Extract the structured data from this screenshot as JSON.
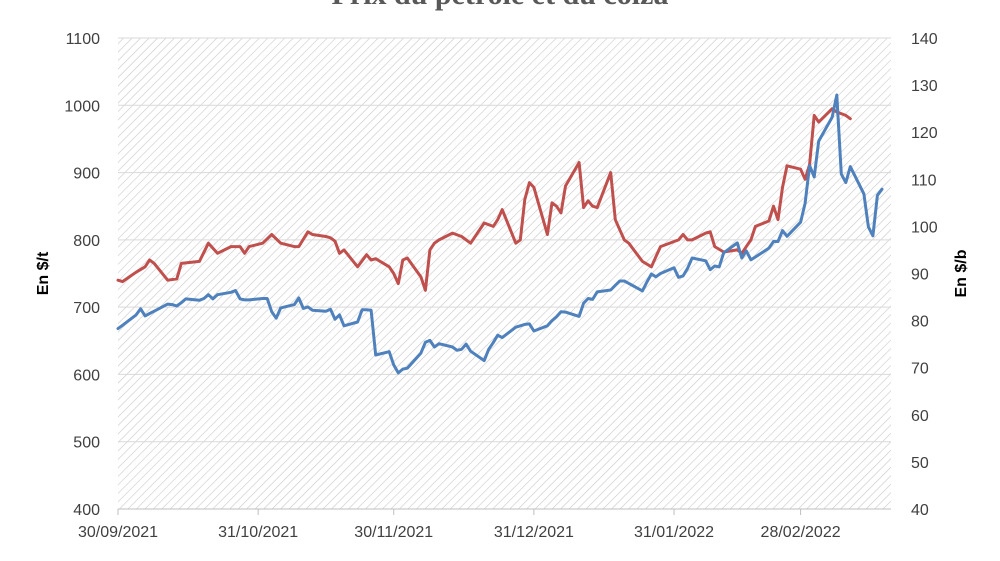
{
  "chart_data": {
    "type": "line",
    "title": "Prix du pétrole et du colza",
    "ylabel_left": "En $/t",
    "ylabel_right": "En $/b",
    "ylim_left": [
      400,
      1100
    ],
    "ylim_right": [
      40,
      140
    ],
    "yticks_left": [
      "400",
      "500",
      "600",
      "700",
      "800",
      "900",
      "1000",
      "1100"
    ],
    "yticks_right": [
      "40",
      "50",
      "60",
      "70",
      "80",
      "90",
      "100",
      "110",
      "120",
      "130",
      "140"
    ],
    "xlim": [
      "2021-09-30",
      "2022-03-20"
    ],
    "xticks": [
      {
        "date": "2021-09-30",
        "label": "30/09/2021"
      },
      {
        "date": "2021-10-31",
        "label": "31/10/2021"
      },
      {
        "date": "2021-11-30",
        "label": "30/11/2021"
      },
      {
        "date": "2021-12-31",
        "label": "31/12/2021"
      },
      {
        "date": "2022-01-31",
        "label": "31/01/2022"
      },
      {
        "date": "2022-02-28",
        "label": "28/02/2022"
      }
    ],
    "grid": true,
    "background": "hatched",
    "series": [
      {
        "axis": "left",
        "color": "#C0504D",
        "points": [
          [
            "2021-09-30",
            740
          ],
          [
            "2021-10-01",
            738
          ],
          [
            "2021-10-04",
            752
          ],
          [
            "2021-10-06",
            760
          ],
          [
            "2021-10-07",
            770
          ],
          [
            "2021-10-08",
            765
          ],
          [
            "2021-10-11",
            740
          ],
          [
            "2021-10-13",
            742
          ],
          [
            "2021-10-14",
            765
          ],
          [
            "2021-10-18",
            768
          ],
          [
            "2021-10-20",
            795
          ],
          [
            "2021-10-22",
            780
          ],
          [
            "2021-10-25",
            790
          ],
          [
            "2021-10-27",
            790
          ],
          [
            "2021-10-28",
            780
          ],
          [
            "2021-10-29",
            790
          ],
          [
            "2021-11-01",
            795
          ],
          [
            "2021-11-03",
            808
          ],
          [
            "2021-11-05",
            795
          ],
          [
            "2021-11-08",
            790
          ],
          [
            "2021-11-09",
            790
          ],
          [
            "2021-11-11",
            812
          ],
          [
            "2021-11-12",
            808
          ],
          [
            "2021-11-15",
            805
          ],
          [
            "2021-11-16",
            803
          ],
          [
            "2021-11-17",
            798
          ],
          [
            "2021-11-18",
            780
          ],
          [
            "2021-11-19",
            785
          ],
          [
            "2021-11-22",
            760
          ],
          [
            "2021-11-24",
            778
          ],
          [
            "2021-11-25",
            770
          ],
          [
            "2021-11-26",
            772
          ],
          [
            "2021-11-29",
            760
          ],
          [
            "2021-11-30",
            750
          ],
          [
            "2021-12-01",
            735
          ],
          [
            "2021-12-02",
            770
          ],
          [
            "2021-12-03",
            773
          ],
          [
            "2021-12-06",
            745
          ],
          [
            "2021-12-07",
            725
          ],
          [
            "2021-12-08",
            785
          ],
          [
            "2021-12-09",
            795
          ],
          [
            "2021-12-10",
            800
          ],
          [
            "2021-12-13",
            810
          ],
          [
            "2021-12-15",
            805
          ],
          [
            "2021-12-17",
            795
          ],
          [
            "2021-12-20",
            825
          ],
          [
            "2021-12-22",
            820
          ],
          [
            "2021-12-23",
            830
          ],
          [
            "2021-12-24",
            845
          ],
          [
            "2021-12-27",
            795
          ],
          [
            "2021-12-28",
            800
          ],
          [
            "2021-12-29",
            860
          ],
          [
            "2021-12-30",
            885
          ],
          [
            "2021-12-31",
            878
          ],
          [
            "2022-01-03",
            808
          ],
          [
            "2022-01-04",
            855
          ],
          [
            "2022-01-05",
            850
          ],
          [
            "2022-01-06",
            840
          ],
          [
            "2022-01-07",
            880
          ],
          [
            "2022-01-10",
            915
          ],
          [
            "2022-01-11",
            848
          ],
          [
            "2022-01-12",
            858
          ],
          [
            "2022-01-13",
            850
          ],
          [
            "2022-01-14",
            848
          ],
          [
            "2022-01-17",
            900
          ],
          [
            "2022-01-18",
            830
          ],
          [
            "2022-01-19",
            815
          ],
          [
            "2022-01-20",
            800
          ],
          [
            "2022-01-21",
            795
          ],
          [
            "2022-01-24",
            768
          ],
          [
            "2022-01-26",
            760
          ],
          [
            "2022-01-27",
            775
          ],
          [
            "2022-01-28",
            790
          ],
          [
            "2022-02-01",
            800
          ],
          [
            "2022-02-02",
            808
          ],
          [
            "2022-02-03",
            800
          ],
          [
            "2022-02-04",
            800
          ],
          [
            "2022-02-07",
            810
          ],
          [
            "2022-02-08",
            812
          ],
          [
            "2022-02-09",
            790
          ],
          [
            "2022-02-11",
            782
          ],
          [
            "2022-02-14",
            785
          ],
          [
            "2022-02-15",
            780
          ],
          [
            "2022-02-16",
            790
          ],
          [
            "2022-02-17",
            800
          ],
          [
            "2022-02-18",
            820
          ],
          [
            "2022-02-21",
            828
          ],
          [
            "2022-02-22",
            850
          ],
          [
            "2022-02-23",
            830
          ],
          [
            "2022-02-24",
            878
          ],
          [
            "2022-02-25",
            910
          ],
          [
            "2022-02-28",
            905
          ],
          [
            "2022-03-01",
            890
          ],
          [
            "2022-03-02",
            912
          ],
          [
            "2022-03-03",
            985
          ],
          [
            "2022-03-04",
            975
          ],
          [
            "2022-03-07",
            995
          ],
          [
            "2022-03-08",
            990
          ],
          [
            "2022-03-10",
            985
          ],
          [
            "2022-03-11",
            980
          ]
        ]
      },
      {
        "axis": "right",
        "color": "#4F81BD",
        "points": [
          [
            "2021-09-30",
            78.3
          ],
          [
            "2021-10-01",
            79.0
          ],
          [
            "2021-10-04",
            81.2
          ],
          [
            "2021-10-05",
            82.5
          ],
          [
            "2021-10-06",
            81.0
          ],
          [
            "2021-10-07",
            81.5
          ],
          [
            "2021-10-08",
            82.0
          ],
          [
            "2021-10-11",
            83.5
          ],
          [
            "2021-10-12",
            83.4
          ],
          [
            "2021-10-13",
            83.1
          ],
          [
            "2021-10-14",
            83.8
          ],
          [
            "2021-10-15",
            84.6
          ],
          [
            "2021-10-18",
            84.3
          ],
          [
            "2021-10-19",
            84.7
          ],
          [
            "2021-10-20",
            85.5
          ],
          [
            "2021-10-21",
            84.6
          ],
          [
            "2021-10-22",
            85.5
          ],
          [
            "2021-10-25",
            86.0
          ],
          [
            "2021-10-26",
            86.4
          ],
          [
            "2021-10-27",
            84.6
          ],
          [
            "2021-10-28",
            84.4
          ],
          [
            "2021-10-29",
            84.4
          ],
          [
            "2021-11-01",
            84.7
          ],
          [
            "2021-11-02",
            84.7
          ],
          [
            "2021-11-03",
            81.9
          ],
          [
            "2021-11-04",
            80.5
          ],
          [
            "2021-11-05",
            82.7
          ],
          [
            "2021-11-08",
            83.4
          ],
          [
            "2021-11-09",
            84.8
          ],
          [
            "2021-11-10",
            82.6
          ],
          [
            "2021-11-11",
            82.9
          ],
          [
            "2021-11-12",
            82.2
          ],
          [
            "2021-11-15",
            82.0
          ],
          [
            "2021-11-16",
            82.4
          ],
          [
            "2021-11-17",
            80.3
          ],
          [
            "2021-11-18",
            81.2
          ],
          [
            "2021-11-19",
            78.9
          ],
          [
            "2021-11-22",
            79.7
          ],
          [
            "2021-11-23",
            82.3
          ],
          [
            "2021-11-24",
            82.3
          ],
          [
            "2021-11-25",
            82.2
          ],
          [
            "2021-11-26",
            72.7
          ],
          [
            "2021-11-29",
            73.4
          ],
          [
            "2021-11-30",
            70.6
          ],
          [
            "2021-12-01",
            68.9
          ],
          [
            "2021-12-02",
            69.7
          ],
          [
            "2021-12-03",
            69.9
          ],
          [
            "2021-12-06",
            73.1
          ],
          [
            "2021-12-07",
            75.4
          ],
          [
            "2021-12-08",
            75.8
          ],
          [
            "2021-12-09",
            74.4
          ],
          [
            "2021-12-10",
            75.1
          ],
          [
            "2021-12-13",
            74.4
          ],
          [
            "2021-12-14",
            73.7
          ],
          [
            "2021-12-15",
            73.9
          ],
          [
            "2021-12-16",
            75.0
          ],
          [
            "2021-12-17",
            73.5
          ],
          [
            "2021-12-20",
            71.5
          ],
          [
            "2021-12-21",
            73.9
          ],
          [
            "2021-12-22",
            75.3
          ],
          [
            "2021-12-23",
            76.9
          ],
          [
            "2021-12-24",
            76.4
          ],
          [
            "2021-12-27",
            78.6
          ],
          [
            "2021-12-28",
            78.9
          ],
          [
            "2021-12-29",
            79.2
          ],
          [
            "2021-12-30",
            79.3
          ],
          [
            "2021-12-31",
            77.8
          ],
          [
            "2022-01-03",
            78.9
          ],
          [
            "2022-01-04",
            80.0
          ],
          [
            "2022-01-05",
            80.8
          ],
          [
            "2022-01-06",
            81.9
          ],
          [
            "2022-01-07",
            81.8
          ],
          [
            "2022-01-10",
            80.9
          ],
          [
            "2022-01-11",
            83.7
          ],
          [
            "2022-01-12",
            84.7
          ],
          [
            "2022-01-13",
            84.5
          ],
          [
            "2022-01-14",
            86.1
          ],
          [
            "2022-01-17",
            86.5
          ],
          [
            "2022-01-18",
            87.5
          ],
          [
            "2022-01-19",
            88.4
          ],
          [
            "2022-01-20",
            88.4
          ],
          [
            "2022-01-21",
            87.9
          ],
          [
            "2022-01-24",
            86.3
          ],
          [
            "2022-01-25",
            88.2
          ],
          [
            "2022-01-26",
            89.9
          ],
          [
            "2022-01-27",
            89.3
          ],
          [
            "2022-01-28",
            90.0
          ],
          [
            "2022-01-31",
            91.2
          ],
          [
            "2022-02-01",
            89.2
          ],
          [
            "2022-02-02",
            89.5
          ],
          [
            "2022-02-03",
            91.1
          ],
          [
            "2022-02-04",
            93.3
          ],
          [
            "2022-02-07",
            92.7
          ],
          [
            "2022-02-08",
            90.8
          ],
          [
            "2022-02-09",
            91.6
          ],
          [
            "2022-02-10",
            91.4
          ],
          [
            "2022-02-11",
            94.4
          ],
          [
            "2022-02-14",
            96.5
          ],
          [
            "2022-02-15",
            93.3
          ],
          [
            "2022-02-16",
            94.8
          ],
          [
            "2022-02-17",
            92.9
          ],
          [
            "2022-02-18",
            93.5
          ],
          [
            "2022-02-21",
            95.4
          ],
          [
            "2022-02-22",
            96.8
          ],
          [
            "2022-02-23",
            96.8
          ],
          [
            "2022-02-24",
            99.1
          ],
          [
            "2022-02-25",
            97.9
          ],
          [
            "2022-02-28",
            100.9
          ],
          [
            "2022-03-01",
            104.9
          ],
          [
            "2022-03-02",
            112.9
          ],
          [
            "2022-03-03",
            110.5
          ],
          [
            "2022-03-04",
            118.1
          ],
          [
            "2022-03-07",
            123.2
          ],
          [
            "2022-03-08",
            127.9
          ],
          [
            "2022-03-09",
            111.1
          ],
          [
            "2022-03-10",
            109.3
          ],
          [
            "2022-03-11",
            112.7
          ],
          [
            "2022-03-14",
            106.9
          ],
          [
            "2022-03-15",
            99.9
          ],
          [
            "2022-03-16",
            98.0
          ],
          [
            "2022-03-17",
            106.6
          ],
          [
            "2022-03-18",
            107.9
          ]
        ]
      }
    ]
  }
}
